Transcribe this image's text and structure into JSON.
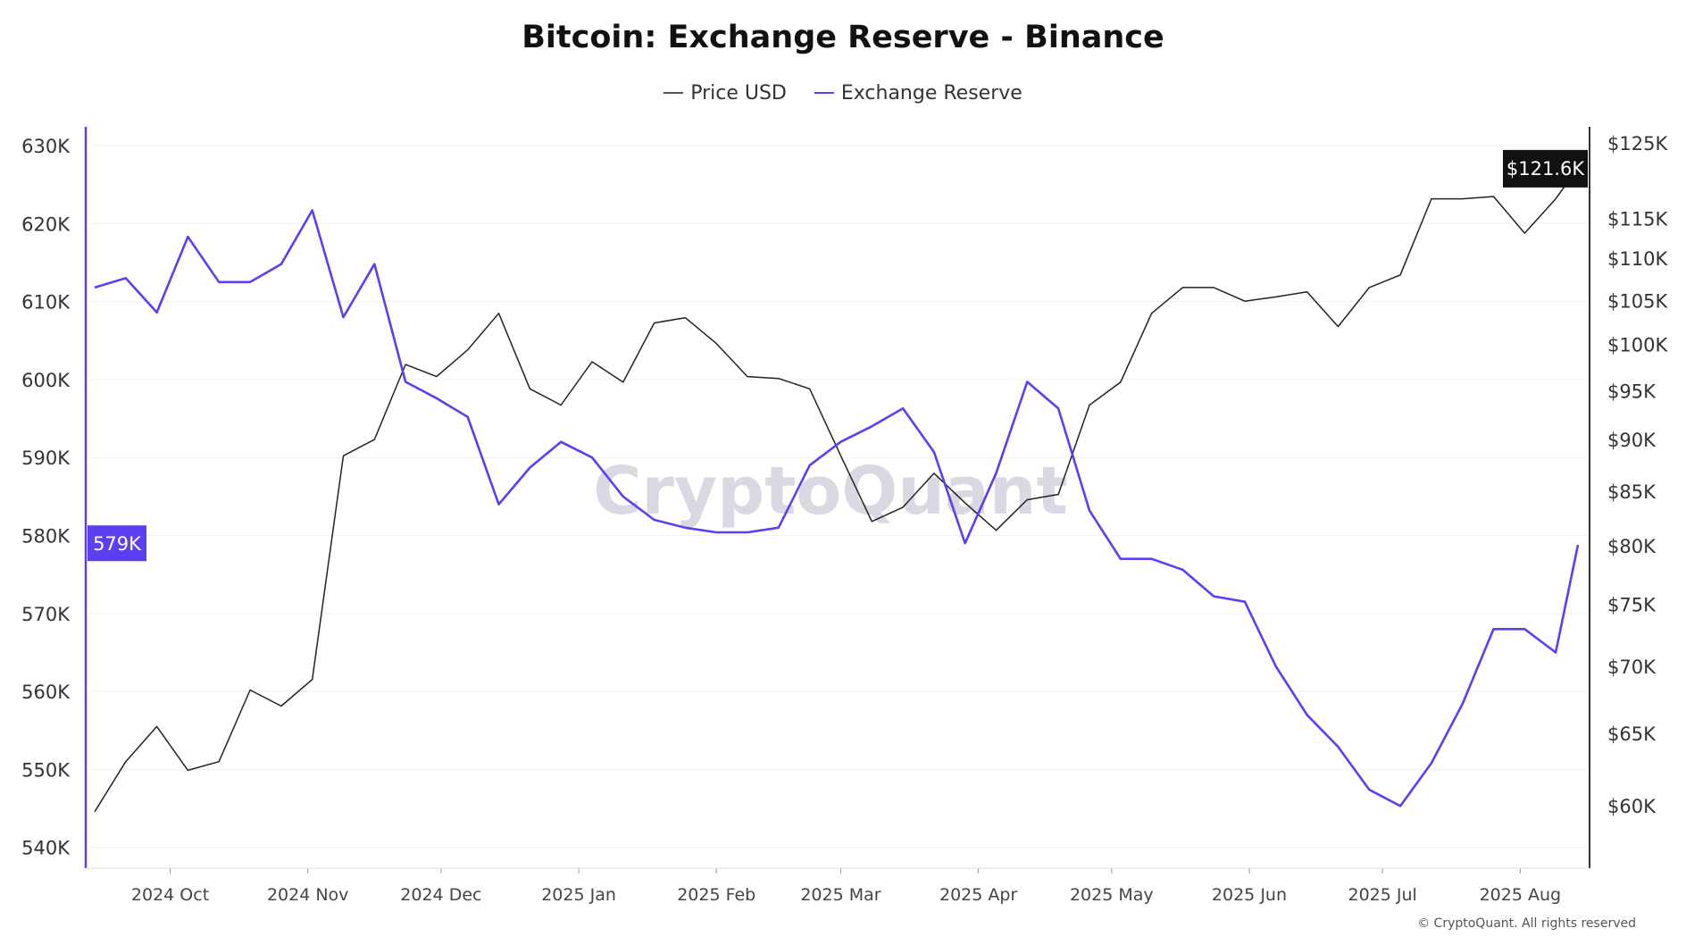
{
  "chart_data": {
    "type": "line",
    "title": "Bitcoin: Exchange Reserve - Binance",
    "legend": [
      "Price USD",
      "Exchange Reserve"
    ],
    "legend_placement": "top-center",
    "watermark": "CryptoQuant",
    "copyright": "© CryptoQuant. All rights reserved",
    "grid": true,
    "x": [
      "2024-09-14",
      "2024-09-21",
      "2024-09-28",
      "2024-10-05",
      "2024-10-12",
      "2024-10-19",
      "2024-10-26",
      "2024-11-02",
      "2024-11-09",
      "2024-11-16",
      "2024-11-23",
      "2024-11-30",
      "2024-12-07",
      "2024-12-14",
      "2024-12-21",
      "2024-12-28",
      "2025-01-04",
      "2025-01-11",
      "2025-01-18",
      "2025-01-25",
      "2025-02-01",
      "2025-02-08",
      "2025-02-15",
      "2025-02-22",
      "2025-03-01",
      "2025-03-08",
      "2025-03-15",
      "2025-03-22",
      "2025-03-29",
      "2025-04-05",
      "2025-04-12",
      "2025-04-19",
      "2025-04-26",
      "2025-05-03",
      "2025-05-10",
      "2025-05-17",
      "2025-05-24",
      "2025-05-31",
      "2025-06-07",
      "2025-06-14",
      "2025-06-21",
      "2025-06-28",
      "2025-07-05",
      "2025-07-12",
      "2025-07-19",
      "2025-07-26",
      "2025-08-02",
      "2025-08-09",
      "2025-08-14"
    ],
    "x_ticks": [
      "2024 Oct",
      "2024 Nov",
      "2024 Dec",
      "2025 Jan",
      "2025 Feb",
      "2025 Mar",
      "2025 Apr",
      "2025 May",
      "2025 Jun",
      "2025 Jul",
      "2025 Aug"
    ],
    "x_tick_dates": [
      "2024-10-01",
      "2024-11-01",
      "2024-12-01",
      "2025-01-01",
      "2025-02-01",
      "2025-03-01",
      "2025-04-01",
      "2025-05-01",
      "2025-06-01",
      "2025-07-01",
      "2025-08-01"
    ],
    "series": [
      {
        "name": "Price USD",
        "axis": "right",
        "color": "#222222",
        "unit": "USD (thousands)",
        "values": [
          59.6,
          63.0,
          65.5,
          62.4,
          63.0,
          68.2,
          67.0,
          69.0,
          88.4,
          90.0,
          97.8,
          96.5,
          99.4,
          103.5,
          95.2,
          93.5,
          98.1,
          95.9,
          102.4,
          103.0,
          100.1,
          96.5,
          96.3,
          95.2,
          88.4,
          82.2,
          83.5,
          86.7,
          83.9,
          81.4,
          84.2,
          84.7,
          93.5,
          95.9,
          103.5,
          106.5,
          106.5,
          104.9,
          105.4,
          106.0,
          102.0,
          106.5,
          108.0,
          117.5,
          117.5,
          117.8,
          113.1,
          117.5,
          121.6
        ]
      },
      {
        "name": "Exchange Reserve",
        "axis": "left",
        "color": "#5b3ff0",
        "unit": "BTC (thousands)",
        "values": [
          611.8,
          613.0,
          608.6,
          618.3,
          612.5,
          612.5,
          614.8,
          621.7,
          608.0,
          614.8,
          599.7,
          597.6,
          595.2,
          584.0,
          588.7,
          592.0,
          590.0,
          585.0,
          582.0,
          581.0,
          580.4,
          580.4,
          581.0,
          589.0,
          592.0,
          594.0,
          596.3,
          590.7,
          579.0,
          588.0,
          599.7,
          596.3,
          583.2,
          577.0,
          577.0,
          575.6,
          572.2,
          571.5,
          563.2,
          557.0,
          552.9,
          547.4,
          545.3,
          550.8,
          558.4,
          568.0,
          568.0,
          565.0,
          578.8
        ]
      }
    ],
    "y_left": {
      "ylim": [
        540,
        630
      ],
      "ticks": [
        "540K",
        "550K",
        "560K",
        "570K",
        "580K",
        "590K",
        "600K",
        "610K",
        "620K",
        "630K"
      ],
      "current_label": "579K"
    },
    "y_right": {
      "scale": "log",
      "ylim": [
        56,
        125
      ],
      "ticks": [
        "$60K",
        "$65K",
        "$70K",
        "$75K",
        "$80K",
        "$85K",
        "$90K",
        "$95K",
        "$100K",
        "$105K",
        "$110K",
        "$115K",
        "$125K"
      ],
      "tick_values": [
        60,
        65,
        70,
        75,
        80,
        85,
        90,
        95,
        100,
        105,
        110,
        115,
        125
      ],
      "current_label": "$121.6K"
    }
  }
}
